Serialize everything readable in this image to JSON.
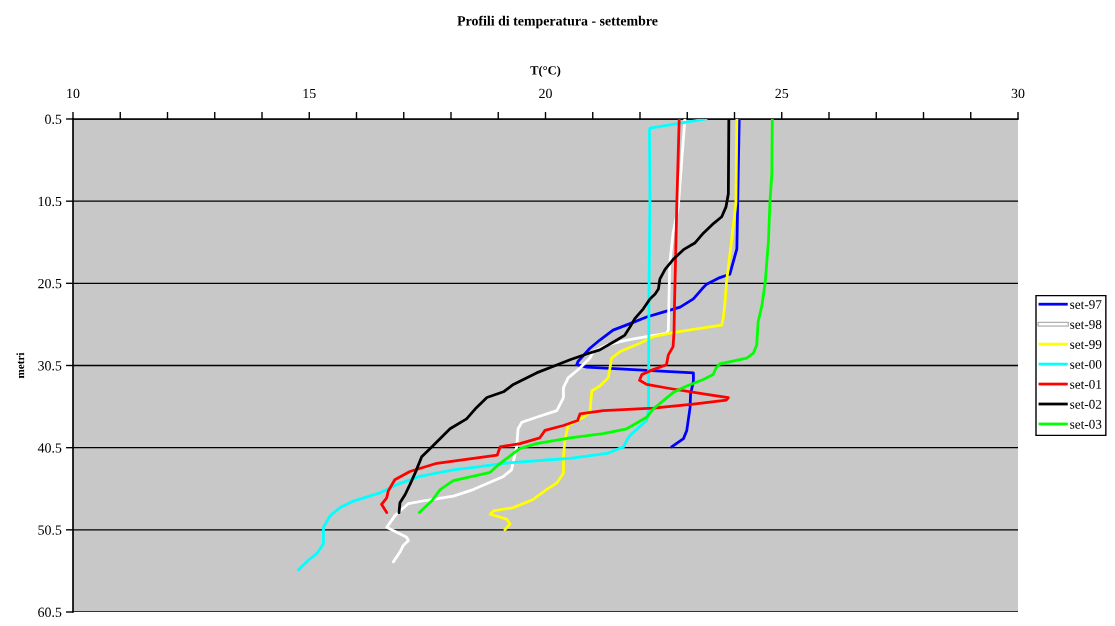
{
  "chart_data": {
    "type": "line",
    "title": "Profili di temperatura - settembre",
    "xlabel": "T(°C)",
    "ylabel": "metri",
    "xlim": [
      10,
      30
    ],
    "xticks": [
      10,
      {
        "value": 11,
        "label": null
      },
      {
        "value": 12,
        "label": null
      },
      {
        "value": 13,
        "label": null
      },
      {
        "value": 14,
        "label": null
      },
      15,
      {
        "value": 16,
        "label": null
      },
      {
        "value": 17,
        "label": null
      },
      {
        "value": 18,
        "label": null
      },
      {
        "value": 19,
        "label": null
      },
      20,
      {
        "value": 21,
        "label": null
      },
      {
        "value": 22,
        "label": null
      },
      {
        "value": 23,
        "label": null
      },
      {
        "value": 24,
        "label": null
      },
      25,
      {
        "value": 26,
        "label": null
      },
      {
        "value": 27,
        "label": null
      },
      {
        "value": 28,
        "label": null
      },
      {
        "value": 29,
        "label": null
      },
      30
    ],
    "ylim": [
      60.5,
      0.5
    ],
    "yticks": [
      0.5,
      10.5,
      20.5,
      30.5,
      40.5,
      50.5,
      60.5
    ],
    "grid": "y",
    "legend": "right",
    "series": [
      {
        "name": "set-97",
        "color": "#0000ff",
        "x": [
          24.1,
          24.07,
          24.05,
          23.9,
          23.69,
          23.41,
          23.31,
          23.13,
          22.85,
          22.49,
          22.14,
          21.79,
          21.43,
          21.15,
          20.94,
          20.69,
          20.66,
          20.87,
          23.13,
          23.13,
          23.07,
          23.06,
          22.99,
          22.92,
          22.67
        ],
        "values": [
          0.5,
          10.0,
          16.3,
          19.4,
          19.8,
          20.6,
          21.2,
          22.4,
          23.4,
          24.0,
          24.6,
          25.4,
          26.2,
          27.4,
          28.4,
          30.0,
          30.4,
          30.7,
          31.4,
          32.4,
          34.0,
          35.6,
          38.4,
          39.4,
          40.4
        ]
      },
      {
        "name": "set-98",
        "color": "#ffffff",
        "x": [
          22.95,
          22.81,
          22.7,
          22.63,
          22.61,
          22.6,
          22.56,
          22.14,
          21.72,
          21.3,
          21.01,
          20.94,
          20.73,
          20.48,
          20.38,
          20.38,
          20.24,
          19.81,
          19.5,
          19.42,
          19.39,
          19.28,
          19.11,
          18.47,
          18.05,
          17.49,
          17.1,
          16.96,
          16.81,
          16.64,
          17.06,
          17.1,
          16.99,
          16.92,
          16.78
        ],
        "values": [
          0.5,
          11.2,
          14.4,
          18.0,
          23.2,
          26.2,
          26.6,
          27.0,
          27.4,
          28.0,
          28.8,
          29.6,
          30.8,
          32.0,
          33.2,
          34.4,
          36.0,
          36.8,
          37.4,
          38.2,
          40.4,
          43.2,
          44.0,
          45.6,
          46.4,
          46.9,
          47.3,
          48.0,
          48.8,
          50.2,
          51.4,
          51.8,
          52.4,
          53.2,
          54.4
        ]
      },
      {
        "name": "set-99",
        "color": "#ffff00",
        "x": [
          24.05,
          24.03,
          23.94,
          23.83,
          23.8,
          23.76,
          23.73,
          23.13,
          22.7,
          22.28,
          22.0,
          21.58,
          21.4,
          21.33,
          21.15,
          20.98,
          20.94,
          20.8,
          20.48,
          20.41,
          20.38,
          20.38,
          20.24,
          20.02,
          19.74,
          19.32,
          18.9,
          18.83,
          19.18,
          19.25,
          19.14
        ],
        "values": [
          0.5,
          10.7,
          15.2,
          20.4,
          22.8,
          24.8,
          25.6,
          26.1,
          26.5,
          27.0,
          27.8,
          28.8,
          29.6,
          32.0,
          33.0,
          33.6,
          36.2,
          36.8,
          37.8,
          39.6,
          41.6,
          43.6,
          44.8,
          45.6,
          46.8,
          47.8,
          48.2,
          48.6,
          49.2,
          49.8,
          50.5
        ]
      },
      {
        "name": "set-00",
        "color": "#00ffff",
        "x": [
          23.4,
          22.21,
          22.2,
          22.21,
          22.19,
          22.18,
          22.14,
          21.79,
          21.72,
          21.65,
          21.3,
          20.52,
          20.03,
          19.11,
          18.61,
          18.05,
          17.34,
          16.85,
          16.5,
          15.93,
          15.65,
          15.44,
          15.3,
          15.3,
          15.16,
          14.98,
          14.77
        ],
        "values": [
          0.5,
          1.6,
          2.0,
          10.0,
          22.0,
          36.0,
          37.2,
          39.0,
          39.6,
          40.4,
          41.2,
          41.8,
          42.0,
          42.4,
          42.8,
          43.2,
          44.0,
          45.0,
          46.0,
          47.0,
          47.8,
          48.8,
          50.2,
          52.2,
          53.4,
          54.2,
          55.4
        ]
      },
      {
        "name": "set-01",
        "color": "#ff0000",
        "x": [
          22.83,
          22.78,
          22.73,
          22.72,
          22.7,
          22.6,
          22.56,
          22.28,
          22.04,
          21.99,
          22.14,
          22.63,
          23.41,
          23.87,
          23.83,
          23.13,
          22.28,
          21.22,
          20.73,
          20.68,
          20.38,
          19.99,
          19.88,
          19.46,
          19.04,
          18.98,
          17.7,
          17.13,
          16.81,
          16.67,
          16.64,
          16.53,
          16.64
        ],
        "values": [
          0.5,
          10.7,
          23.2,
          26.4,
          28.2,
          29.2,
          30.4,
          31.0,
          31.6,
          32.3,
          32.8,
          33.3,
          34.0,
          34.4,
          34.7,
          35.2,
          35.7,
          36.0,
          36.4,
          37.2,
          37.8,
          38.4,
          39.3,
          40.0,
          40.4,
          41.4,
          42.4,
          43.4,
          44.4,
          45.8,
          46.6,
          47.4,
          48.4
        ]
      },
      {
        "name": "set-02",
        "color": "#000000",
        "x": [
          23.88,
          23.87,
          23.82,
          23.73,
          23.56,
          23.34,
          23.16,
          22.92,
          22.7,
          22.53,
          22.42,
          22.39,
          22.32,
          22.21,
          22.07,
          21.89,
          21.79,
          21.68,
          21.51,
          21.15,
          20.87,
          20.52,
          20.17,
          19.81,
          19.32,
          19.11,
          18.76,
          18.51,
          18.33,
          17.98,
          17.63,
          17.38,
          17.24,
          17.13,
          17.03,
          16.92,
          16.9
        ],
        "values": [
          0.5,
          9.6,
          11.2,
          12.4,
          13.2,
          14.4,
          15.6,
          16.4,
          17.6,
          18.8,
          20.0,
          21.2,
          21.8,
          22.4,
          23.6,
          24.8,
          25.8,
          26.8,
          27.4,
          28.6,
          29.1,
          29.8,
          30.6,
          31.4,
          32.8,
          33.7,
          34.4,
          35.8,
          37.0,
          38.2,
          40.2,
          41.6,
          43.6,
          45.0,
          46.2,
          47.2,
          48.4
        ]
      },
      {
        "name": "set-03",
        "color": "#00ff00",
        "x": [
          24.8,
          24.79,
          24.75,
          24.72,
          24.65,
          24.58,
          24.5,
          24.47,
          24.4,
          24.26,
          23.69,
          23.61,
          23.55,
          23.34,
          22.99,
          22.7,
          22.49,
          22.28,
          22.14,
          21.72,
          21.22,
          20.52,
          19.81,
          19.46,
          19.04,
          18.83,
          18.05,
          17.77,
          17.59,
          17.33
        ],
        "values": [
          0.5,
          7.2,
          10.6,
          15.2,
          20.4,
          23.2,
          25.2,
          28.0,
          29.0,
          29.6,
          30.3,
          30.8,
          31.6,
          32.2,
          33.0,
          33.8,
          34.8,
          35.8,
          36.8,
          38.2,
          38.8,
          39.3,
          40.0,
          40.6,
          42.4,
          43.5,
          44.5,
          45.6,
          47.0,
          48.4
        ]
      }
    ]
  }
}
